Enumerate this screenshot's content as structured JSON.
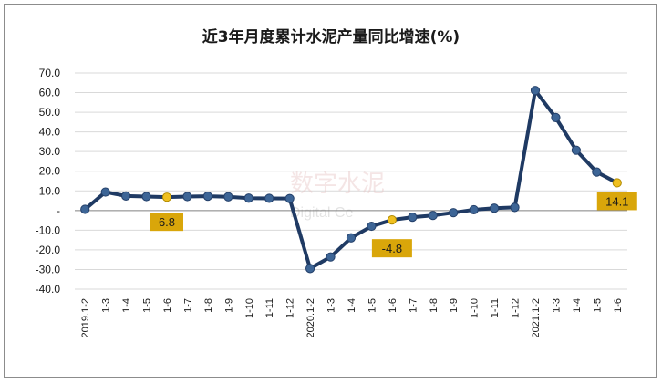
{
  "chart_data": {
    "type": "line",
    "title": "近3年月度累计水泥产量同比增速(%)",
    "xlabel": "",
    "ylabel": "",
    "ylim": [
      -40,
      70
    ],
    "yticks": [
      "70.0",
      "60.0",
      "50.0",
      "40.0",
      "30.0",
      "20.0",
      "10.0",
      "-",
      "-10.0",
      "-20.0",
      "-30.0",
      "-40.0"
    ],
    "ytick_values": [
      70,
      60,
      50,
      40,
      30,
      20,
      10,
      0,
      -10,
      -20,
      -30,
      -40
    ],
    "grid": true,
    "legend": "none",
    "categories": [
      "2019.1-2",
      "1-3",
      "1-4",
      "1-5",
      "1-6",
      "1-7",
      "1-8",
      "1-9",
      "1-10",
      "1-11",
      "1-12",
      "2020.1-2",
      "1-3",
      "1-4",
      "1-5",
      "1-6",
      "1-7",
      "1-8",
      "1-9",
      "1-10",
      "1-11",
      "1-12",
      "2021.1-2",
      "1-3",
      "1-4",
      "1-5",
      "1-6"
    ],
    "series": [
      {
        "values": [
          0.6,
          9.4,
          7.4,
          7.1,
          6.8,
          7.1,
          7.3,
          7.0,
          6.3,
          6.2,
          6.1,
          -29.5,
          -23.6,
          -13.9,
          -8.0,
          -4.8,
          -3.4,
          -2.5,
          -1.1,
          0.4,
          1.2,
          1.6,
          61.1,
          47.3,
          30.7,
          19.6,
          14.1
        ]
      }
    ],
    "annotations": [
      {
        "index": 4,
        "text": "6.8"
      },
      {
        "index": 15,
        "text": "-4.8"
      },
      {
        "index": 26,
        "text": "14.1"
      }
    ],
    "colors": {
      "line": "#1f3a63",
      "marker": "#3d6596",
      "highlight_marker": "#f0c020",
      "label_bg": "#d9a60a",
      "grid": "#d9d9d9",
      "axis": "#808080"
    }
  },
  "watermark": {
    "main": "数字水泥",
    "sub": "Digital Ce"
  }
}
